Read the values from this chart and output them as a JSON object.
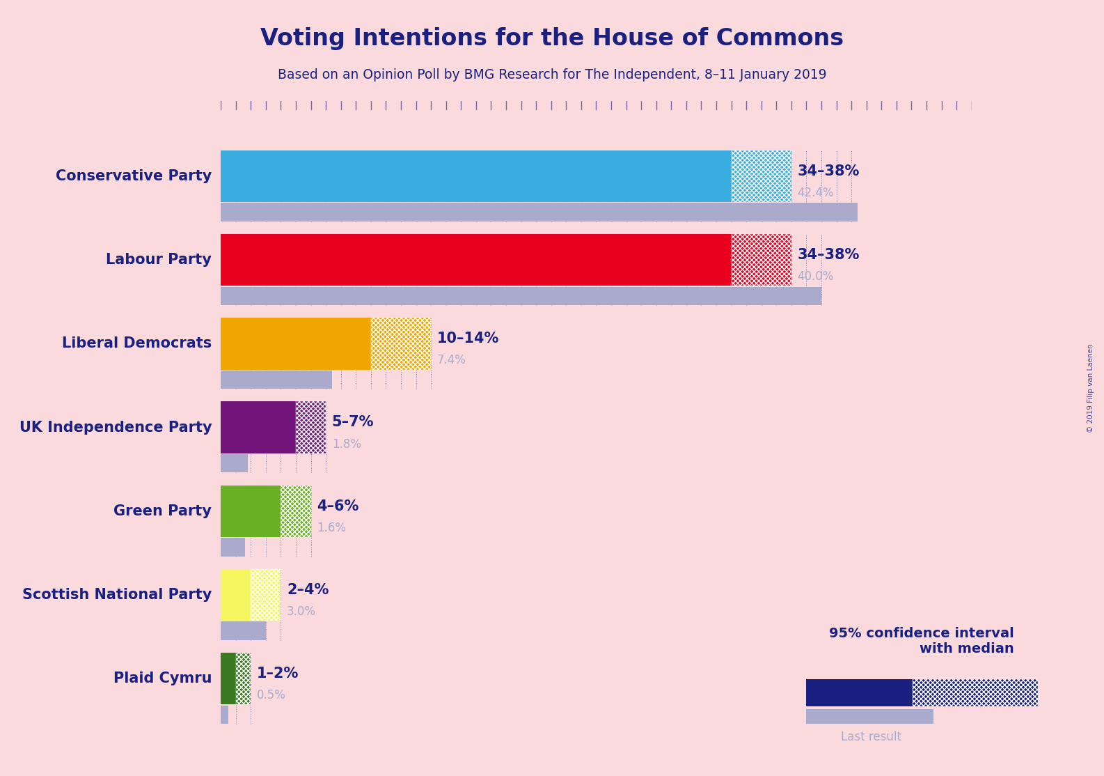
{
  "title": "Voting Intentions for the House of Commons",
  "subtitle": "Based on an Opinion Poll by BMG Research for The Independent, 8–11 January 2019",
  "copyright": "© 2019 Filip van Laenen",
  "background_color": "#FADADD",
  "title_color": "#1a2080",
  "subtitle_color": "#1a2080",
  "parties": [
    {
      "name": "Conservative Party",
      "color": "#3aaee0",
      "hatch_color": "#3aaee0",
      "ci_low": 34,
      "ci_high": 38,
      "last_result": 42.4,
      "label": "34–38%",
      "last_label": "42.4%"
    },
    {
      "name": "Labour Party",
      "color": "#e8001e",
      "hatch_color": "#e8001e",
      "ci_low": 34,
      "ci_high": 38,
      "last_result": 40.0,
      "label": "34–38%",
      "last_label": "40.0%"
    },
    {
      "name": "Liberal Democrats",
      "color": "#f0a500",
      "hatch_color": "#f0a500",
      "ci_low": 10,
      "ci_high": 14,
      "last_result": 7.4,
      "label": "10–14%",
      "last_label": "7.4%"
    },
    {
      "name": "UK Independence Party",
      "color": "#70147A",
      "hatch_color": "#70147A",
      "ci_low": 5,
      "ci_high": 7,
      "last_result": 1.8,
      "label": "5–7%",
      "last_label": "1.8%"
    },
    {
      "name": "Green Party",
      "color": "#6ab023",
      "hatch_color": "#6ab023",
      "ci_low": 4,
      "ci_high": 6,
      "last_result": 1.6,
      "label": "4–6%",
      "last_label": "1.6%"
    },
    {
      "name": "Scottish National Party",
      "color": "#f5f560",
      "hatch_color": "#c8c830",
      "ci_low": 2,
      "ci_high": 4,
      "last_result": 3.0,
      "label": "2–4%",
      "last_label": "3.0%"
    },
    {
      "name": "Plaid Cymru",
      "color": "#3a7a20",
      "hatch_color": "#3a7a20",
      "ci_low": 1,
      "ci_high": 2,
      "last_result": 0.5,
      "label": "1–2%",
      "last_label": "0.5%"
    }
  ],
  "xlim": [
    0,
    50
  ],
  "label_color": "#1a2080",
  "last_result_color": "#aaaacc",
  "last_result_bar_color": "#aaaacc",
  "median_label_color": "#aaaacc",
  "tick_color": "#1a2080",
  "legend_ci_color": "#1a2080"
}
